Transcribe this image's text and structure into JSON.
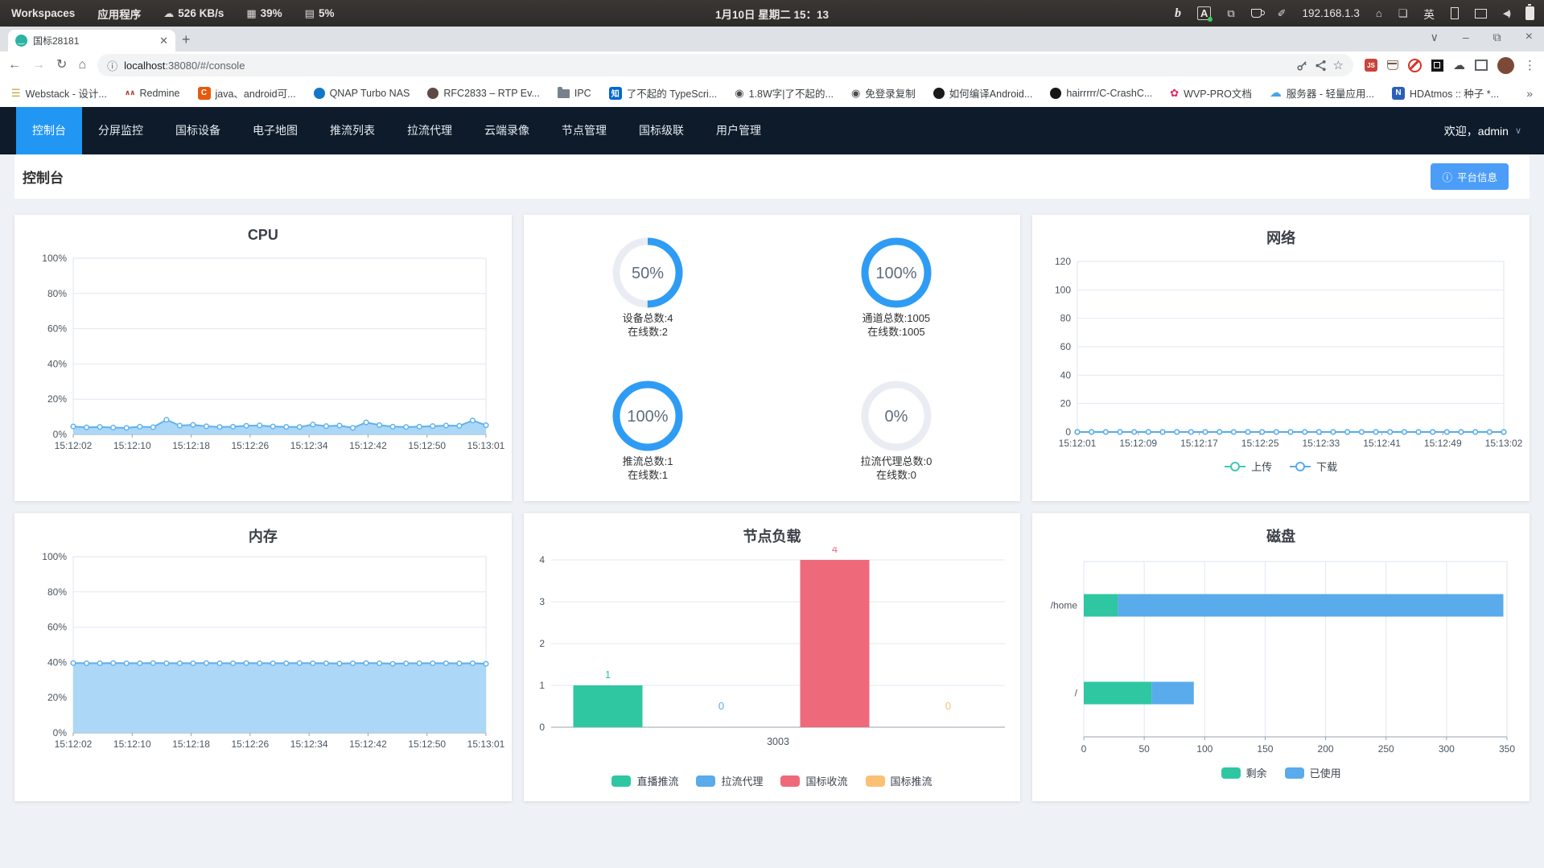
{
  "system_bar": {
    "workspaces": "Workspaces",
    "applications": "应用程序",
    "net_speed": "526 KB/s",
    "cpu_usage": "39%",
    "mem_usage": "5%",
    "clock": "1月10日 星期二 15：13",
    "ip": "192.168.1.3",
    "input_method": "英"
  },
  "browser": {
    "tab_title": "国标28181",
    "new_tab": "+",
    "url_host": "localhost",
    "url_rest": ":38080/#/console",
    "ext_js_label": "JS",
    "overflow": "»",
    "bookmarks": [
      {
        "name": "webstack",
        "label": "Webstack - 设计...",
        "icon": "layers",
        "color": "#C9A13B"
      },
      {
        "name": "redmine",
        "label": "Redmine",
        "icon": "peaks",
        "color": "#C0392B"
      },
      {
        "name": "csdn",
        "label": "java、android可...",
        "icon": "badge",
        "char": "C",
        "bg": "#E8590C"
      },
      {
        "name": "qnap",
        "label": "QNAP Turbo NAS",
        "icon": "dot",
        "color": "#1277C8"
      },
      {
        "name": "rfc2833",
        "label": "RFC2833 – RTP Ev...",
        "icon": "dot",
        "color": "#5D4A42"
      },
      {
        "name": "ipc-folder",
        "label": "IPC",
        "icon": "folder"
      },
      {
        "name": "zhihu",
        "label": "了不起的 TypeScri...",
        "icon": "badge",
        "char": "知",
        "bg": "#0668D1"
      },
      {
        "name": "article",
        "label": "1.8W字|了不起的...",
        "icon": "globe",
        "color": "#4A4A4A"
      },
      {
        "name": "copy-free",
        "label": "免登录复制",
        "icon": "globe",
        "color": "#4A4A4A"
      },
      {
        "name": "android-build",
        "label": "如何编译Android...",
        "icon": "dot",
        "color": "#1A1A1A"
      },
      {
        "name": "github",
        "label": "hairrrrr/C-CrashC...",
        "icon": "dot",
        "color": "#171515"
      },
      {
        "name": "wvp-docs",
        "label": "WVP-PRO文档",
        "icon": "flower",
        "color": "#E91E63"
      },
      {
        "name": "cloud-server",
        "label": "服务器 - 轻量应用...",
        "icon": "cloud",
        "color": "#4AA3E8"
      },
      {
        "name": "hdatmos",
        "label": "HDAtmos :: 种子 *...",
        "icon": "badge",
        "char": "N",
        "bg": "#2B5FB8"
      }
    ]
  },
  "app": {
    "nav": {
      "items": [
        {
          "key": "console",
          "label": "控制台",
          "active": true
        },
        {
          "key": "split-screen",
          "label": "分屏监控",
          "active": false
        },
        {
          "key": "gb-device",
          "label": "国标设备",
          "active": false
        },
        {
          "key": "e-map",
          "label": "电子地图",
          "active": false
        },
        {
          "key": "push-list",
          "label": "推流列表",
          "active": false
        },
        {
          "key": "pull-proxy",
          "label": "拉流代理",
          "active": false
        },
        {
          "key": "cloud-record",
          "label": "云端录像",
          "active": false
        },
        {
          "key": "node-manage",
          "label": "节点管理",
          "active": false
        },
        {
          "key": "gb-cascade",
          "label": "国标级联",
          "active": false
        },
        {
          "key": "user-manage",
          "label": "用户管理",
          "active": false
        }
      ],
      "welcome": "欢迎，admin"
    },
    "header": {
      "title": "控制台",
      "platform_button": "平台信息"
    }
  },
  "chart_data": [
    {
      "id": "cpu",
      "type": "area",
      "title": "CPU",
      "ylim": [
        0,
        100
      ],
      "y_ticks": [
        "0%",
        "20%",
        "40%",
        "60%",
        "80%",
        "100%"
      ],
      "x_ticks": [
        "15:12:02",
        "15:12:10",
        "15:12:18",
        "15:12:26",
        "15:12:34",
        "15:12:42",
        "15:12:50",
        "15:13:01"
      ],
      "line_color": "#5FB1EF",
      "fill_color": "#A9D5F5",
      "values": [
        4.5,
        4,
        4.2,
        3.9,
        3.7,
        4.4,
        4.1,
        8.3,
        5,
        5.4,
        4.6,
        4.2,
        4.4,
        4.9,
        5.1,
        4.5,
        4.3,
        4.2,
        5.6,
        4.7,
        5,
        3.7,
        6.8,
        5.3,
        4.4,
        4.2,
        4.4,
        4.7,
        5,
        4.9,
        7.9,
        5.2
      ]
    },
    {
      "id": "stats",
      "type": "rings",
      "ring_color": "#2E9CF4",
      "track_color": "#E9EDF3",
      "items": [
        {
          "pct": 50,
          "line1": "设备总数:4",
          "line2": "在线数:2"
        },
        {
          "pct": 100,
          "line1": "通道总数:1005",
          "line2": "在线数:1005"
        },
        {
          "pct": 100,
          "line1": "推流总数:1",
          "line2": "在线数:1"
        },
        {
          "pct": 0,
          "line1": "拉流代理总数:0",
          "line2": "在线数:0"
        }
      ]
    },
    {
      "id": "net",
      "type": "line",
      "title": "网络",
      "ylim": [
        0,
        120
      ],
      "y_ticks": [
        0,
        20,
        40,
        60,
        80,
        100,
        120
      ],
      "x_ticks": [
        "15:12:01",
        "15:12:09",
        "15:12:17",
        "15:12:25",
        "15:12:33",
        "15:12:41",
        "15:12:49",
        "15:13:02"
      ],
      "legend_marker": "line",
      "series": [
        {
          "name": "上传",
          "color": "#41C8B2",
          "value": 0,
          "count": 31
        },
        {
          "name": "下载",
          "color": "#59ABEB",
          "value": 0,
          "count": 31
        }
      ]
    },
    {
      "id": "mem",
      "type": "area",
      "title": "内存",
      "ylim": [
        0,
        100
      ],
      "y_ticks": [
        "0%",
        "20%",
        "40%",
        "60%",
        "80%",
        "100%"
      ],
      "x_ticks": [
        "15:12:02",
        "15:12:10",
        "15:12:18",
        "15:12:26",
        "15:12:34",
        "15:12:42",
        "15:12:50",
        "15:13:01"
      ],
      "line_color": "#5FB1EF",
      "fill_color": "#A9D5F5",
      "values": [
        39.6,
        39.5,
        39.5,
        39.6,
        39.5,
        39.5,
        39.6,
        39.5,
        39.5,
        39.5,
        39.6,
        39.5,
        39.5,
        39.6,
        39.5,
        39.5,
        39.5,
        39.6,
        39.5,
        39.5,
        39.3,
        39.5,
        39.6,
        39.5,
        39.2,
        39.4,
        39.5,
        39.5,
        39.5,
        39.4,
        39.5,
        39.2
      ]
    },
    {
      "id": "load",
      "type": "bar",
      "title": "节点负载",
      "ylim": [
        0,
        4
      ],
      "y_ticks": [
        0,
        1,
        2,
        3,
        4
      ],
      "categories": [
        "3003"
      ],
      "series": [
        {
          "name": "直播推流",
          "color": "#2EC7A2",
          "value": 1
        },
        {
          "name": "拉流代理",
          "color": "#59ABEB",
          "value": 0
        },
        {
          "name": "国标收流",
          "color": "#EE6A7B",
          "value": 4
        },
        {
          "name": "国标推流",
          "color": "#FAC174",
          "value": 0
        }
      ]
    },
    {
      "id": "disk",
      "type": "hbar",
      "title": "磁盘",
      "xlim": [
        0,
        350
      ],
      "x_ticks": [
        0,
        50,
        100,
        150,
        200,
        250,
        300,
        350
      ],
      "categories": [
        "/home",
        "/"
      ],
      "series": [
        {
          "name": "剩余",
          "color": "#2EC7A2",
          "values": [
            28,
            56
          ]
        },
        {
          "name": "已使用",
          "color": "#59ABEB",
          "values": [
            319,
            35
          ]
        }
      ]
    }
  ]
}
